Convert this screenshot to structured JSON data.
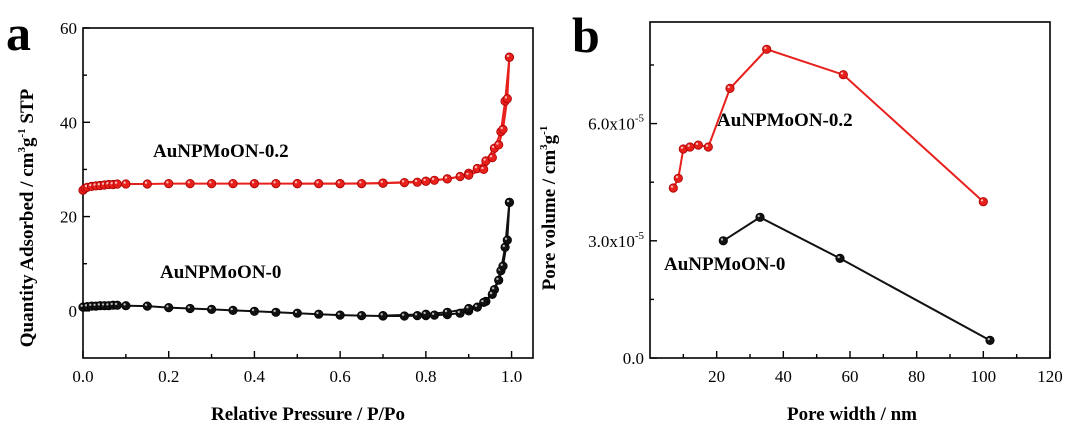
{
  "chart_data": [
    {
      "panel_label": "a",
      "type": "line",
      "xlabel": "Relative Pressure / P/Po",
      "ylabel": "Quantity Adsorbed / cm³g⁻¹ STP",
      "ylabel_parts": [
        "Quantity Adsorbed / cm",
        "3",
        "g",
        "-1",
        " STP"
      ],
      "xlim": [
        0.0,
        1.05
      ],
      "ylim": [
        -10,
        60
      ],
      "xticks": [
        "0.0",
        "0.2",
        "0.4",
        "0.6",
        "0.8",
        "1.0"
      ],
      "xtick_values": [
        0.0,
        0.2,
        0.4,
        0.6,
        0.8,
        1.0
      ],
      "yticks": [
        "0",
        "20",
        "40",
        "60"
      ],
      "ytick_values": [
        0,
        20,
        40,
        60
      ],
      "series": [
        {
          "name": "AuNPMoON-0.2",
          "color": "#e8201c",
          "marker": "circle",
          "adsorption": [
            [
              0.0,
              25.6
            ],
            [
              0.005,
              26.0
            ],
            [
              0.01,
              26.2
            ],
            [
              0.02,
              26.4
            ],
            [
              0.03,
              26.5
            ],
            [
              0.04,
              26.6
            ],
            [
              0.05,
              26.7
            ],
            [
              0.06,
              26.8
            ],
            [
              0.07,
              26.8
            ],
            [
              0.08,
              26.9
            ],
            [
              0.1,
              26.9
            ],
            [
              0.15,
              26.9
            ],
            [
              0.2,
              27.0
            ],
            [
              0.25,
              27.0
            ],
            [
              0.3,
              27.0
            ],
            [
              0.35,
              27.0
            ],
            [
              0.4,
              27.0
            ],
            [
              0.45,
              27.0
            ],
            [
              0.5,
              27.0
            ],
            [
              0.55,
              27.0
            ],
            [
              0.6,
              27.0
            ],
            [
              0.65,
              27.0
            ],
            [
              0.7,
              27.1
            ],
            [
              0.75,
              27.2
            ],
            [
              0.78,
              27.3
            ],
            [
              0.8,
              27.5
            ],
            [
              0.82,
              27.7
            ],
            [
              0.85,
              28.0
            ],
            [
              0.88,
              28.5
            ],
            [
              0.9,
              29.2
            ],
            [
              0.92,
              30.2
            ],
            [
              0.94,
              31.8
            ],
            [
              0.96,
              34.5
            ],
            [
              0.975,
              38.0
            ],
            [
              0.985,
              44.5
            ],
            [
              0.995,
              53.8
            ]
          ],
          "desorption": [
            [
              0.995,
              53.8
            ],
            [
              0.99,
              45.0
            ],
            [
              0.98,
              38.5
            ],
            [
              0.97,
              35.2
            ],
            [
              0.955,
              32.5
            ],
            [
              0.935,
              30.0
            ],
            [
              0.9,
              28.8
            ],
            [
              0.85,
              28.0
            ],
            [
              0.8,
              27.5
            ],
            [
              0.7,
              27.1
            ],
            [
              0.6,
              27.0
            ],
            [
              0.5,
              27.0
            ]
          ]
        },
        {
          "name": "AuNPMoON-0",
          "color": "#111111",
          "marker": "circle",
          "adsorption": [
            [
              0.0,
              0.8
            ],
            [
              0.01,
              0.9
            ],
            [
              0.02,
              1.0
            ],
            [
              0.03,
              1.0
            ],
            [
              0.04,
              1.1
            ],
            [
              0.05,
              1.1
            ],
            [
              0.06,
              1.1
            ],
            [
              0.07,
              1.2
            ],
            [
              0.08,
              1.2
            ],
            [
              0.1,
              1.1
            ],
            [
              0.15,
              1.0
            ],
            [
              0.2,
              0.7
            ],
            [
              0.25,
              0.5
            ],
            [
              0.3,
              0.3
            ],
            [
              0.35,
              0.1
            ],
            [
              0.4,
              -0.1
            ],
            [
              0.45,
              -0.3
            ],
            [
              0.5,
              -0.5
            ],
            [
              0.55,
              -0.7
            ],
            [
              0.6,
              -0.9
            ],
            [
              0.65,
              -1.0
            ],
            [
              0.7,
              -1.1
            ],
            [
              0.75,
              -1.1
            ],
            [
              0.78,
              -1.0
            ],
            [
              0.8,
              -1.0
            ],
            [
              0.82,
              -0.9
            ],
            [
              0.85,
              -0.8
            ],
            [
              0.88,
              -0.5
            ],
            [
              0.9,
              0.0
            ],
            [
              0.92,
              0.8
            ],
            [
              0.94,
              2.0
            ],
            [
              0.96,
              4.5
            ],
            [
              0.975,
              8.5
            ],
            [
              0.985,
              13.5
            ],
            [
              0.995,
              23.0
            ]
          ],
          "desorption": [
            [
              0.995,
              23.0
            ],
            [
              0.99,
              15.0
            ],
            [
              0.98,
              9.5
            ],
            [
              0.97,
              6.5
            ],
            [
              0.955,
              3.5
            ],
            [
              0.935,
              1.8
            ],
            [
              0.9,
              0.5
            ],
            [
              0.85,
              -0.3
            ],
            [
              0.8,
              -0.7
            ],
            [
              0.7,
              -1.0
            ]
          ]
        }
      ]
    },
    {
      "panel_label": "b",
      "type": "line",
      "xlabel": "Pore width / nm",
      "ylabel": "Pore volume / cm³g⁻¹",
      "ylabel_parts": [
        "Pore volume / cm",
        "3",
        "g",
        "-1",
        ""
      ],
      "xlim": [
        0,
        120
      ],
      "ylim": [
        0.0,
        8.6e-05
      ],
      "xticks": [
        "20",
        "40",
        "60",
        "80",
        "100",
        "120"
      ],
      "xtick_values": [
        20,
        40,
        60,
        80,
        100,
        120
      ],
      "yticks": [
        "0.0",
        "3.0x10",
        "6.0x10"
      ],
      "ytick_sup": [
        "",
        "-5",
        "-5"
      ],
      "ytick_values": [
        0.0,
        3e-05,
        6e-05
      ],
      "series": [
        {
          "name": "AuNPMoON-0.2",
          "color": "#e8201c",
          "marker": "circle",
          "points": [
            [
              7.0,
              4.35e-05
            ],
            [
              8.5,
              4.6e-05
            ],
            [
              10.0,
              5.35e-05
            ],
            [
              12.0,
              5.4e-05
            ],
            [
              14.5,
              5.45e-05
            ],
            [
              17.5,
              5.4e-05
            ],
            [
              24.0,
              6.9e-05
            ],
            [
              35.0,
              7.9e-05
            ],
            [
              58.0,
              7.25e-05
            ],
            [
              100.0,
              4e-05
            ]
          ]
        },
        {
          "name": "AuNPMoON-0",
          "color": "#111111",
          "marker": "circle",
          "points": [
            [
              22.0,
              3e-05
            ],
            [
              33.0,
              3.6e-05
            ],
            [
              57.0,
              2.55e-05
            ],
            [
              102.0,
              4.5e-06
            ]
          ]
        }
      ]
    }
  ]
}
